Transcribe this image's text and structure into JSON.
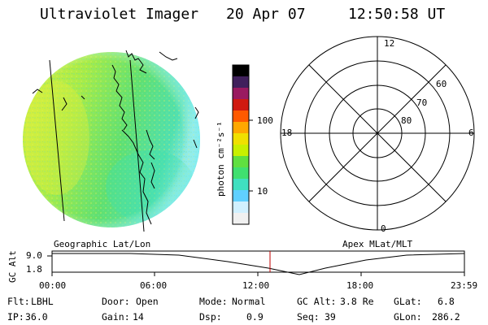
{
  "header": {
    "title": "Ultraviolet Imager",
    "date": "20 Apr 07",
    "time": "12:50:58 UT"
  },
  "colorbar": {
    "unit_label": "photon cm⁻²s⁻¹",
    "ticks": [
      {
        "label": "100",
        "value": 100
      },
      {
        "label": "10",
        "value": 10
      }
    ],
    "colors": [
      "#000000",
      "#40205c",
      "#9a1a60",
      "#d01a10",
      "#ff5a00",
      "#ffa800",
      "#f0e000",
      "#c8f000",
      "#60e040",
      "#40e070",
      "#40e0c0",
      "#60d0ff",
      "#d0f0ff",
      "#f0f0f0"
    ]
  },
  "left_image": {
    "caption": "Geographic Lat/Lon"
  },
  "polar_plot": {
    "caption": "Apex MLat/MLT",
    "mlt_labels": {
      "top": "12",
      "left": "18",
      "right": "6",
      "bottom": "0"
    },
    "lat_labels": [
      "60",
      "70",
      "80"
    ]
  },
  "timeline": {
    "ylabel": "GC Alt",
    "ytick": "9.0",
    "ytick_low": "1.8",
    "xticks": [
      "00:00",
      "06:00",
      "12:00",
      "18:00",
      "23:59"
    ],
    "marker_time": "12:50"
  },
  "info": {
    "row1": [
      {
        "label": "Flt:",
        "value": "LBHL"
      },
      {
        "label": "Door:",
        "value": "Open"
      },
      {
        "label": "Mode:",
        "value": "Normal"
      },
      {
        "label": "GC Alt:",
        "value": "3.8 Re"
      },
      {
        "label": "GLat:",
        "value": "6.8"
      }
    ],
    "row2": [
      {
        "label": "IP:",
        "value": "36.0"
      },
      {
        "label": "Gain:",
        "value": "14"
      },
      {
        "label": "Dsp:",
        "value": "0.9"
      },
      {
        "label": "Seq:",
        "value": "39"
      },
      {
        "label": "GLon:",
        "value": "286.2"
      }
    ]
  }
}
